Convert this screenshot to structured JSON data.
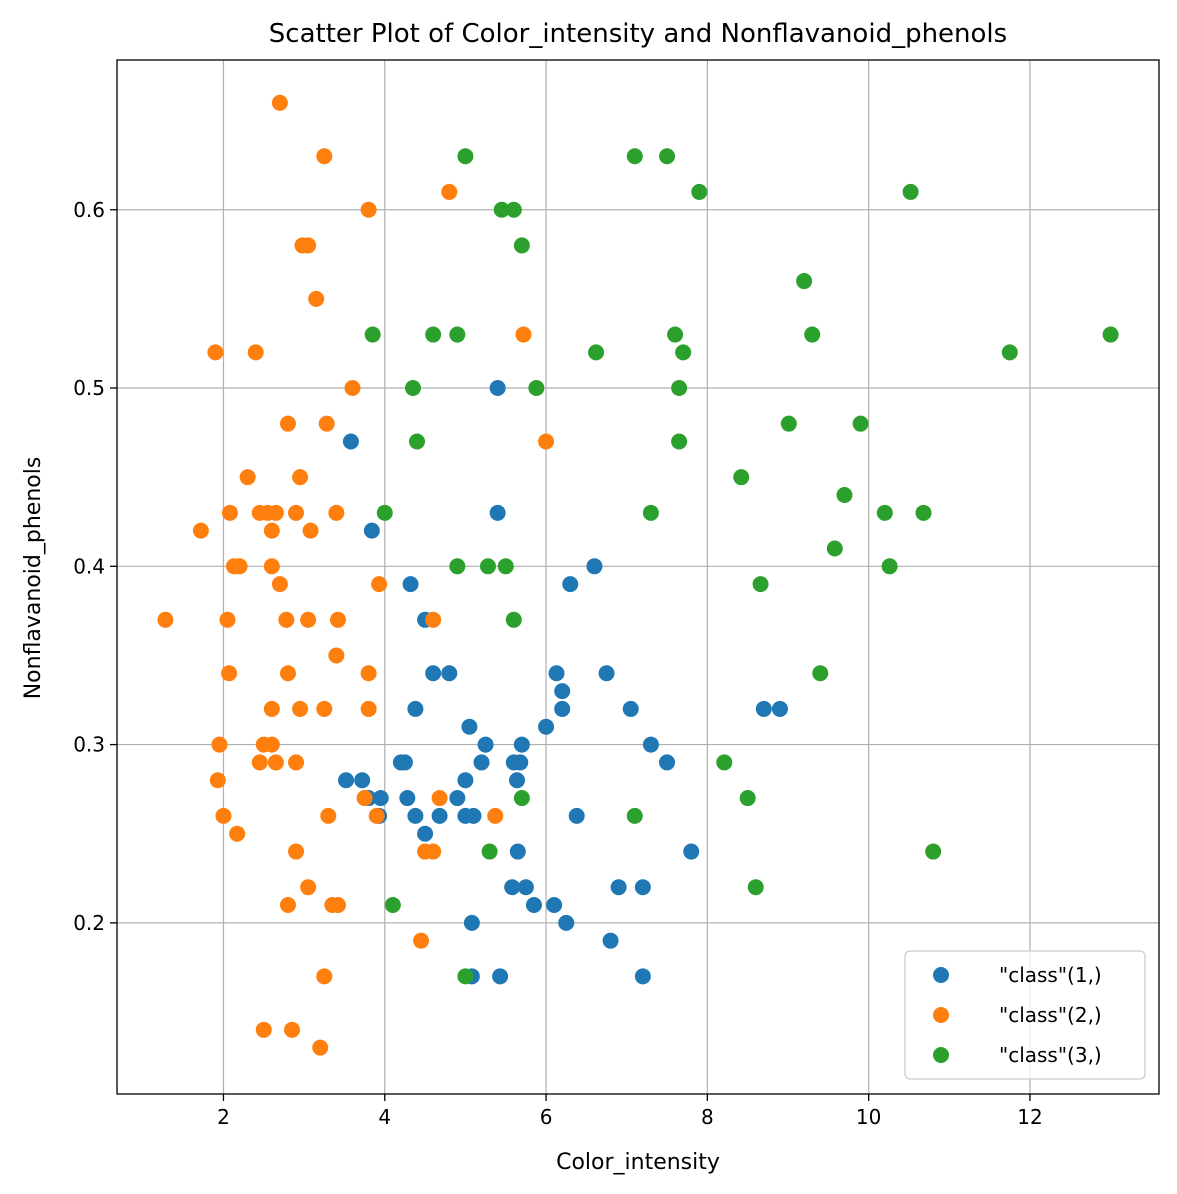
{
  "chart_data": {
    "type": "scatter",
    "title": "Scatter Plot of Color_intensity and Nonflavanoid_phenols",
    "xlabel": "Color_intensity",
    "ylabel": "Nonflavanoid_phenols",
    "xlim": [
      0.68,
      13.6
    ],
    "ylim": [
      0.104,
      0.684
    ],
    "xticks": [
      2,
      4,
      6,
      8,
      10,
      12
    ],
    "xtick_labels": [
      "2",
      "4",
      "6",
      "8",
      "10",
      "12"
    ],
    "yticks": [
      0.2,
      0.3,
      0.4,
      0.5,
      0.6
    ],
    "ytick_labels": [
      "0.2",
      "0.3",
      "0.4",
      "0.5",
      "0.6"
    ],
    "grid": true,
    "legend_position": "bottom-right",
    "series": [
      {
        "name": "\"class\"(1,)",
        "color": "#1f77b4",
        "points": [
          [
            3.58,
            0.47
          ],
          [
            3.84,
            0.42
          ],
          [
            4.32,
            0.39
          ],
          [
            4.5,
            0.37
          ],
          [
            4.6,
            0.34
          ],
          [
            4.8,
            0.34
          ],
          [
            4.38,
            0.32
          ],
          [
            5.05,
            0.31
          ],
          [
            5.25,
            0.3
          ],
          [
            5.7,
            0.3
          ],
          [
            5.6,
            0.29
          ],
          [
            5.68,
            0.29
          ],
          [
            5.2,
            0.29
          ],
          [
            5.64,
            0.28
          ],
          [
            5.0,
            0.28
          ],
          [
            4.9,
            0.27
          ],
          [
            4.2,
            0.29
          ],
          [
            4.25,
            0.29
          ],
          [
            3.52,
            0.28
          ],
          [
            3.72,
            0.28
          ],
          [
            3.8,
            0.27
          ],
          [
            3.95,
            0.27
          ],
          [
            4.28,
            0.27
          ],
          [
            3.93,
            0.26
          ],
          [
            4.38,
            0.26
          ],
          [
            4.68,
            0.26
          ],
          [
            5.0,
            0.26
          ],
          [
            5.1,
            0.26
          ],
          [
            4.5,
            0.25
          ],
          [
            5.65,
            0.24
          ],
          [
            5.58,
            0.22
          ],
          [
            5.75,
            0.22
          ],
          [
            5.85,
            0.21
          ],
          [
            6.1,
            0.21
          ],
          [
            6.25,
            0.2
          ],
          [
            5.08,
            0.2
          ],
          [
            5.08,
            0.17
          ],
          [
            5.43,
            0.17
          ],
          [
            5.4,
            0.5
          ],
          [
            5.4,
            0.43
          ],
          [
            6.3,
            0.39
          ],
          [
            6.6,
            0.4
          ],
          [
            6.13,
            0.34
          ],
          [
            6.2,
            0.33
          ],
          [
            6.2,
            0.32
          ],
          [
            6.0,
            0.31
          ],
          [
            6.75,
            0.34
          ],
          [
            7.05,
            0.32
          ],
          [
            7.3,
            0.3
          ],
          [
            7.5,
            0.29
          ],
          [
            6.38,
            0.26
          ],
          [
            6.9,
            0.22
          ],
          [
            7.2,
            0.22
          ],
          [
            6.8,
            0.19
          ],
          [
            7.2,
            0.17
          ],
          [
            7.8,
            0.24
          ],
          [
            8.7,
            0.32
          ],
          [
            8.9,
            0.32
          ]
        ]
      },
      {
        "name": "\"class\"(2,)",
        "color": "#ff7f0e",
        "points": [
          [
            2.7,
            0.66
          ],
          [
            3.25,
            0.63
          ],
          [
            4.8,
            0.61
          ],
          [
            3.8,
            0.6
          ],
          [
            2.98,
            0.58
          ],
          [
            3.05,
            0.58
          ],
          [
            3.15,
            0.55
          ],
          [
            1.9,
            0.52
          ],
          [
            2.4,
            0.52
          ],
          [
            5.72,
            0.53
          ],
          [
            3.6,
            0.5
          ],
          [
            2.8,
            0.48
          ],
          [
            3.28,
            0.48
          ],
          [
            6.0,
            0.47
          ],
          [
            2.3,
            0.45
          ],
          [
            2.95,
            0.45
          ],
          [
            1.72,
            0.42
          ],
          [
            2.45,
            0.43
          ],
          [
            2.55,
            0.43
          ],
          [
            2.65,
            0.43
          ],
          [
            2.9,
            0.43
          ],
          [
            3.4,
            0.43
          ],
          [
            2.08,
            0.43
          ],
          [
            2.6,
            0.42
          ],
          [
            3.08,
            0.42
          ],
          [
            2.13,
            0.4
          ],
          [
            2.2,
            0.4
          ],
          [
            2.6,
            0.4
          ],
          [
            2.7,
            0.39
          ],
          [
            3.93,
            0.39
          ],
          [
            1.28,
            0.37
          ],
          [
            2.05,
            0.37
          ],
          [
            2.78,
            0.37
          ],
          [
            3.05,
            0.37
          ],
          [
            3.42,
            0.37
          ],
          [
            4.6,
            0.37
          ],
          [
            3.4,
            0.35
          ],
          [
            2.07,
            0.34
          ],
          [
            2.8,
            0.34
          ],
          [
            3.8,
            0.34
          ],
          [
            2.6,
            0.32
          ],
          [
            2.95,
            0.32
          ],
          [
            3.25,
            0.32
          ],
          [
            3.8,
            0.32
          ],
          [
            1.95,
            0.3
          ],
          [
            2.5,
            0.3
          ],
          [
            2.6,
            0.3
          ],
          [
            2.45,
            0.29
          ],
          [
            2.65,
            0.29
          ],
          [
            2.9,
            0.29
          ],
          [
            1.93,
            0.28
          ],
          [
            3.75,
            0.27
          ],
          [
            4.68,
            0.27
          ],
          [
            2.0,
            0.26
          ],
          [
            3.3,
            0.26
          ],
          [
            3.9,
            0.26
          ],
          [
            5.37,
            0.26
          ],
          [
            2.17,
            0.25
          ],
          [
            2.9,
            0.24
          ],
          [
            4.5,
            0.24
          ],
          [
            4.6,
            0.24
          ],
          [
            3.05,
            0.22
          ],
          [
            2.8,
            0.21
          ],
          [
            3.35,
            0.21
          ],
          [
            3.42,
            0.21
          ],
          [
            4.45,
            0.19
          ],
          [
            3.25,
            0.17
          ],
          [
            2.5,
            0.14
          ],
          [
            2.85,
            0.14
          ],
          [
            3.2,
            0.13
          ]
        ]
      },
      {
        "name": "\"class\"(3,)",
        "color": "#2ca02c",
        "points": [
          [
            5.0,
            0.63
          ],
          [
            7.1,
            0.63
          ],
          [
            7.5,
            0.63
          ],
          [
            7.9,
            0.61
          ],
          [
            10.52,
            0.61
          ],
          [
            5.45,
            0.6
          ],
          [
            5.6,
            0.6
          ],
          [
            5.7,
            0.58
          ],
          [
            9.2,
            0.56
          ],
          [
            3.85,
            0.53
          ],
          [
            4.6,
            0.53
          ],
          [
            4.9,
            0.53
          ],
          [
            7.6,
            0.53
          ],
          [
            9.3,
            0.53
          ],
          [
            13.0,
            0.53
          ],
          [
            6.62,
            0.52
          ],
          [
            7.7,
            0.52
          ],
          [
            11.75,
            0.52
          ],
          [
            4.35,
            0.5
          ],
          [
            5.88,
            0.5
          ],
          [
            7.65,
            0.5
          ],
          [
            9.01,
            0.48
          ],
          [
            9.9,
            0.48
          ],
          [
            4.4,
            0.47
          ],
          [
            7.65,
            0.47
          ],
          [
            8.42,
            0.45
          ],
          [
            9.7,
            0.44
          ],
          [
            4.0,
            0.43
          ],
          [
            7.3,
            0.43
          ],
          [
            10.2,
            0.43
          ],
          [
            10.68,
            0.43
          ],
          [
            9.58,
            0.41
          ],
          [
            4.9,
            0.4
          ],
          [
            5.28,
            0.4
          ],
          [
            5.5,
            0.4
          ],
          [
            10.26,
            0.4
          ],
          [
            8.66,
            0.39
          ],
          [
            5.6,
            0.37
          ],
          [
            9.4,
            0.34
          ],
          [
            8.21,
            0.29
          ],
          [
            5.7,
            0.27
          ],
          [
            8.5,
            0.27
          ],
          [
            7.1,
            0.26
          ],
          [
            5.3,
            0.24
          ],
          [
            10.8,
            0.24
          ],
          [
            8.6,
            0.22
          ],
          [
            4.1,
            0.21
          ],
          [
            5.0,
            0.17
          ]
        ]
      }
    ]
  }
}
